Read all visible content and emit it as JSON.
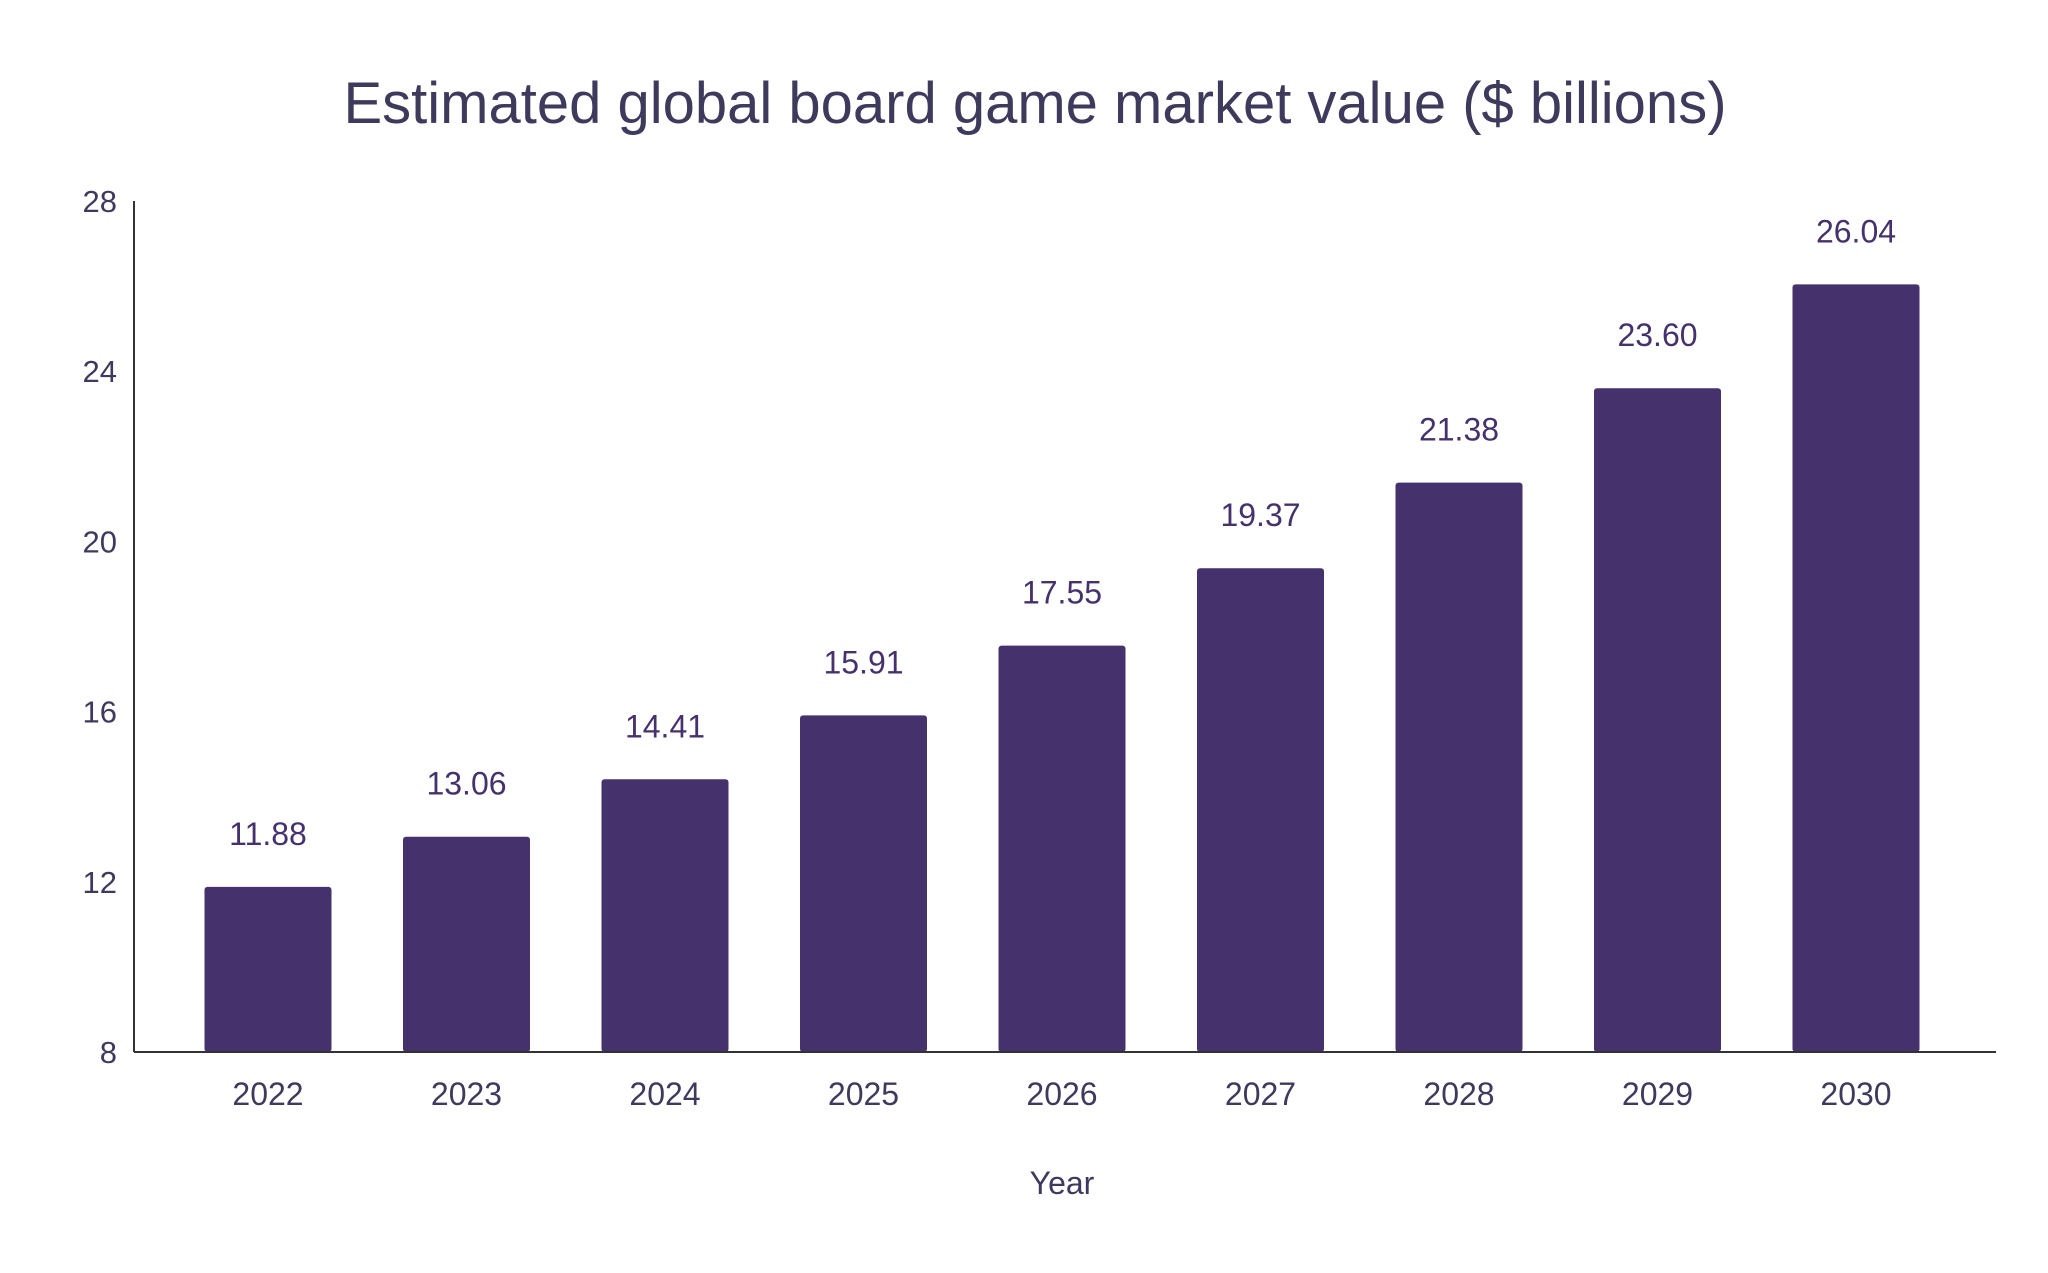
{
  "chart_data": {
    "type": "bar",
    "title": "Estimated global board game market value ($ billions)",
    "xlabel": "Year",
    "ylabel": "",
    "categories": [
      "2022",
      "2023",
      "2024",
      "2025",
      "2026",
      "2027",
      "2028",
      "2029",
      "2030"
    ],
    "values": [
      11.88,
      13.06,
      14.41,
      15.91,
      17.55,
      19.37,
      21.38,
      23.6,
      26.04
    ],
    "value_labels": [
      "11.88",
      "13.06",
      "14.41",
      "15.91",
      "17.55",
      "19.37",
      "21.38",
      "23.60",
      "26.04"
    ],
    "ylim": [
      8,
      28
    ],
    "yticks": [
      "8",
      "12",
      "16",
      "20",
      "24",
      "28"
    ],
    "grid": false,
    "colors": {
      "bar": "#45316b",
      "text": "#3d3a5c",
      "value_label": "#45316b",
      "axis": "#333333"
    }
  }
}
